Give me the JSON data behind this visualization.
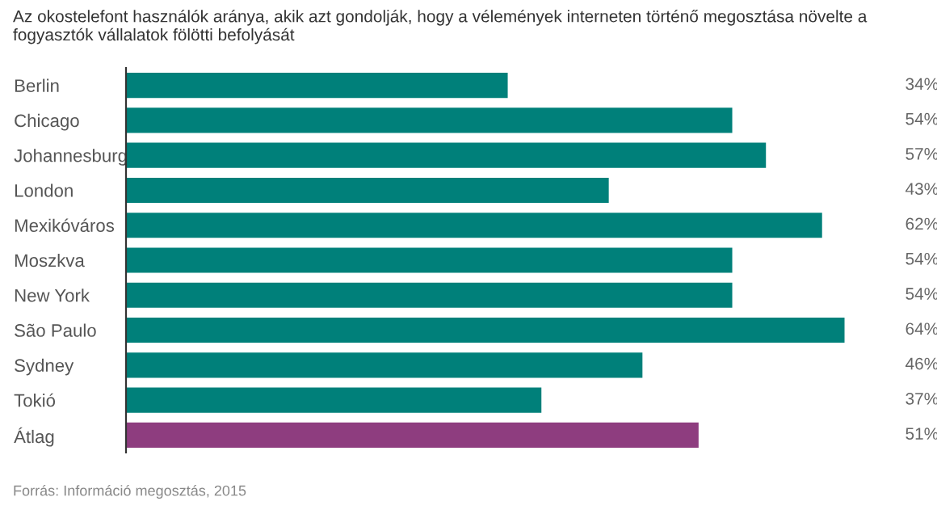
{
  "chart_data": {
    "type": "bar",
    "orientation": "horizontal",
    "title": "Az okostelefont használók aránya, akik azt gondolják, hogy a vélemények interneten történő megosztása növelte a fogyasztók vállalatok fölötti befolyását",
    "categories": [
      "Berlin",
      "Chicago",
      "Johannesburg",
      "London",
      "Mexikóváros",
      "Moszkva",
      "New York",
      "São Paulo",
      "Sydney",
      "Tokió",
      "Átlag"
    ],
    "values": [
      34,
      54,
      57,
      43,
      62,
      54,
      54,
      64,
      46,
      37,
      51
    ],
    "colors": [
      "#00807a",
      "#00807a",
      "#00807a",
      "#00807a",
      "#00807a",
      "#00807a",
      "#00807a",
      "#00807a",
      "#00807a",
      "#00807a",
      "#8e3d7f"
    ],
    "value_labels": [
      "34%",
      "54%",
      "57%",
      "43%",
      "62%",
      "54%",
      "54%",
      "64%",
      "46%",
      "37%",
      "51%"
    ],
    "tick_labels": "y",
    "grid": false,
    "legend": false,
    "annotations": [
      "Forrás: Információ megosztás, 2015"
    ]
  }
}
